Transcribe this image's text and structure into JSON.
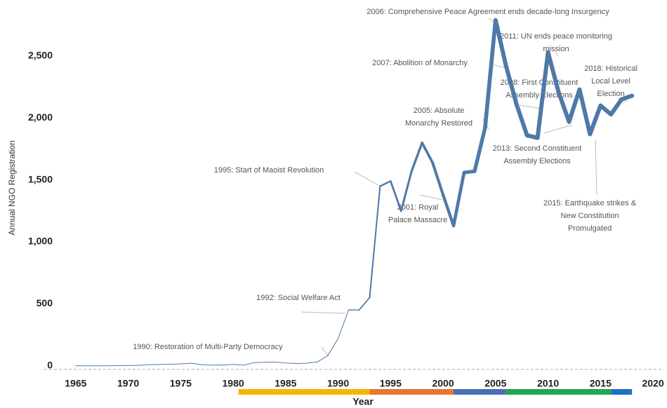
{
  "chart_data": {
    "type": "line",
    "x_label": "Year",
    "y_label": "Annual NGO Registration",
    "x": [
      1965,
      1966,
      1967,
      1968,
      1969,
      1970,
      1971,
      1972,
      1973,
      1974,
      1975,
      1976,
      1977,
      1978,
      1979,
      1980,
      1981,
      1982,
      1983,
      1984,
      1985,
      1986,
      1987,
      1988,
      1989,
      1990,
      1991,
      1992,
      1993,
      1994,
      1995,
      1996,
      1997,
      1998,
      1999,
      2000,
      2001,
      2002,
      2003,
      2004,
      2005,
      2006,
      2007,
      2008,
      2009,
      2010,
      2011,
      2012,
      2013,
      2014,
      2015,
      2016,
      2017,
      2018
    ],
    "series": [
      {
        "name": "Annual NGO Registration",
        "color": "#4e79a7",
        "values": [
          0,
          0,
          0,
          0,
          1,
          2,
          3,
          8,
          10,
          12,
          15,
          20,
          8,
          5,
          6,
          10,
          5,
          25,
          28,
          30,
          22,
          18,
          20,
          30,
          80,
          220,
          450,
          450,
          550,
          1450,
          1490,
          1250,
          1570,
          1800,
          1640,
          1380,
          1130,
          1560,
          1570,
          1920,
          2790,
          2420,
          2110,
          1860,
          1840,
          2530,
          2210,
          1970,
          2230,
          1870,
          2100,
          2030,
          2150,
          2180
        ]
      }
    ],
    "xlim": [
      1962,
      2021
    ],
    "ylim": [
      -30,
      2800
    ],
    "xticks": [
      1965,
      1970,
      1975,
      1980,
      1985,
      1990,
      1995,
      2000,
      2005,
      2010,
      2015,
      2020
    ],
    "yticks": [
      0,
      500,
      {
        "value": 1000,
        "label": "1,000"
      },
      {
        "value": 1500,
        "label": "1,500"
      },
      {
        "value": 2000,
        "label": "2,000"
      },
      {
        "value": 2500,
        "label": "2,500"
      }
    ],
    "periods": [
      {
        "start": 1980.5,
        "end": 1993,
        "color": "#f2b705"
      },
      {
        "start": 1993,
        "end": 2001,
        "color": "#e8762c"
      },
      {
        "start": 2001,
        "end": 2006,
        "color": "#4a6fb5"
      },
      {
        "start": 2006,
        "end": 2016,
        "color": "#22a650"
      },
      {
        "start": 2016,
        "end": 2018,
        "color": "#1f6fc1"
      }
    ],
    "annotations": [
      [
        "1990: Restoration of Multi-Party Democracy"
      ],
      [
        "1992: Social Welfare Act"
      ],
      [
        "1995: Start of Maoist Revolution"
      ],
      [
        "2001: Royal",
        "Palace Massacre"
      ],
      [
        "2005: Absolute",
        "Monarchy Restored"
      ],
      [
        "2006: Comprehensive Peace Agreement ends decade-long Insurgency"
      ],
      [
        "2007: Abolition of Monarchy"
      ],
      [
        "2008: First Constituent",
        "Assembly Elections"
      ],
      [
        "2011: UN ends peace monitoring",
        "mission"
      ],
      [
        "2018: Historical",
        "Local Level",
        "Election"
      ],
      [
        "2013: Second Constituent",
        "Assembly Elections"
      ],
      [
        "2015: Earthquake strikes &",
        "New Constitution",
        "Promulgated"
      ]
    ]
  }
}
